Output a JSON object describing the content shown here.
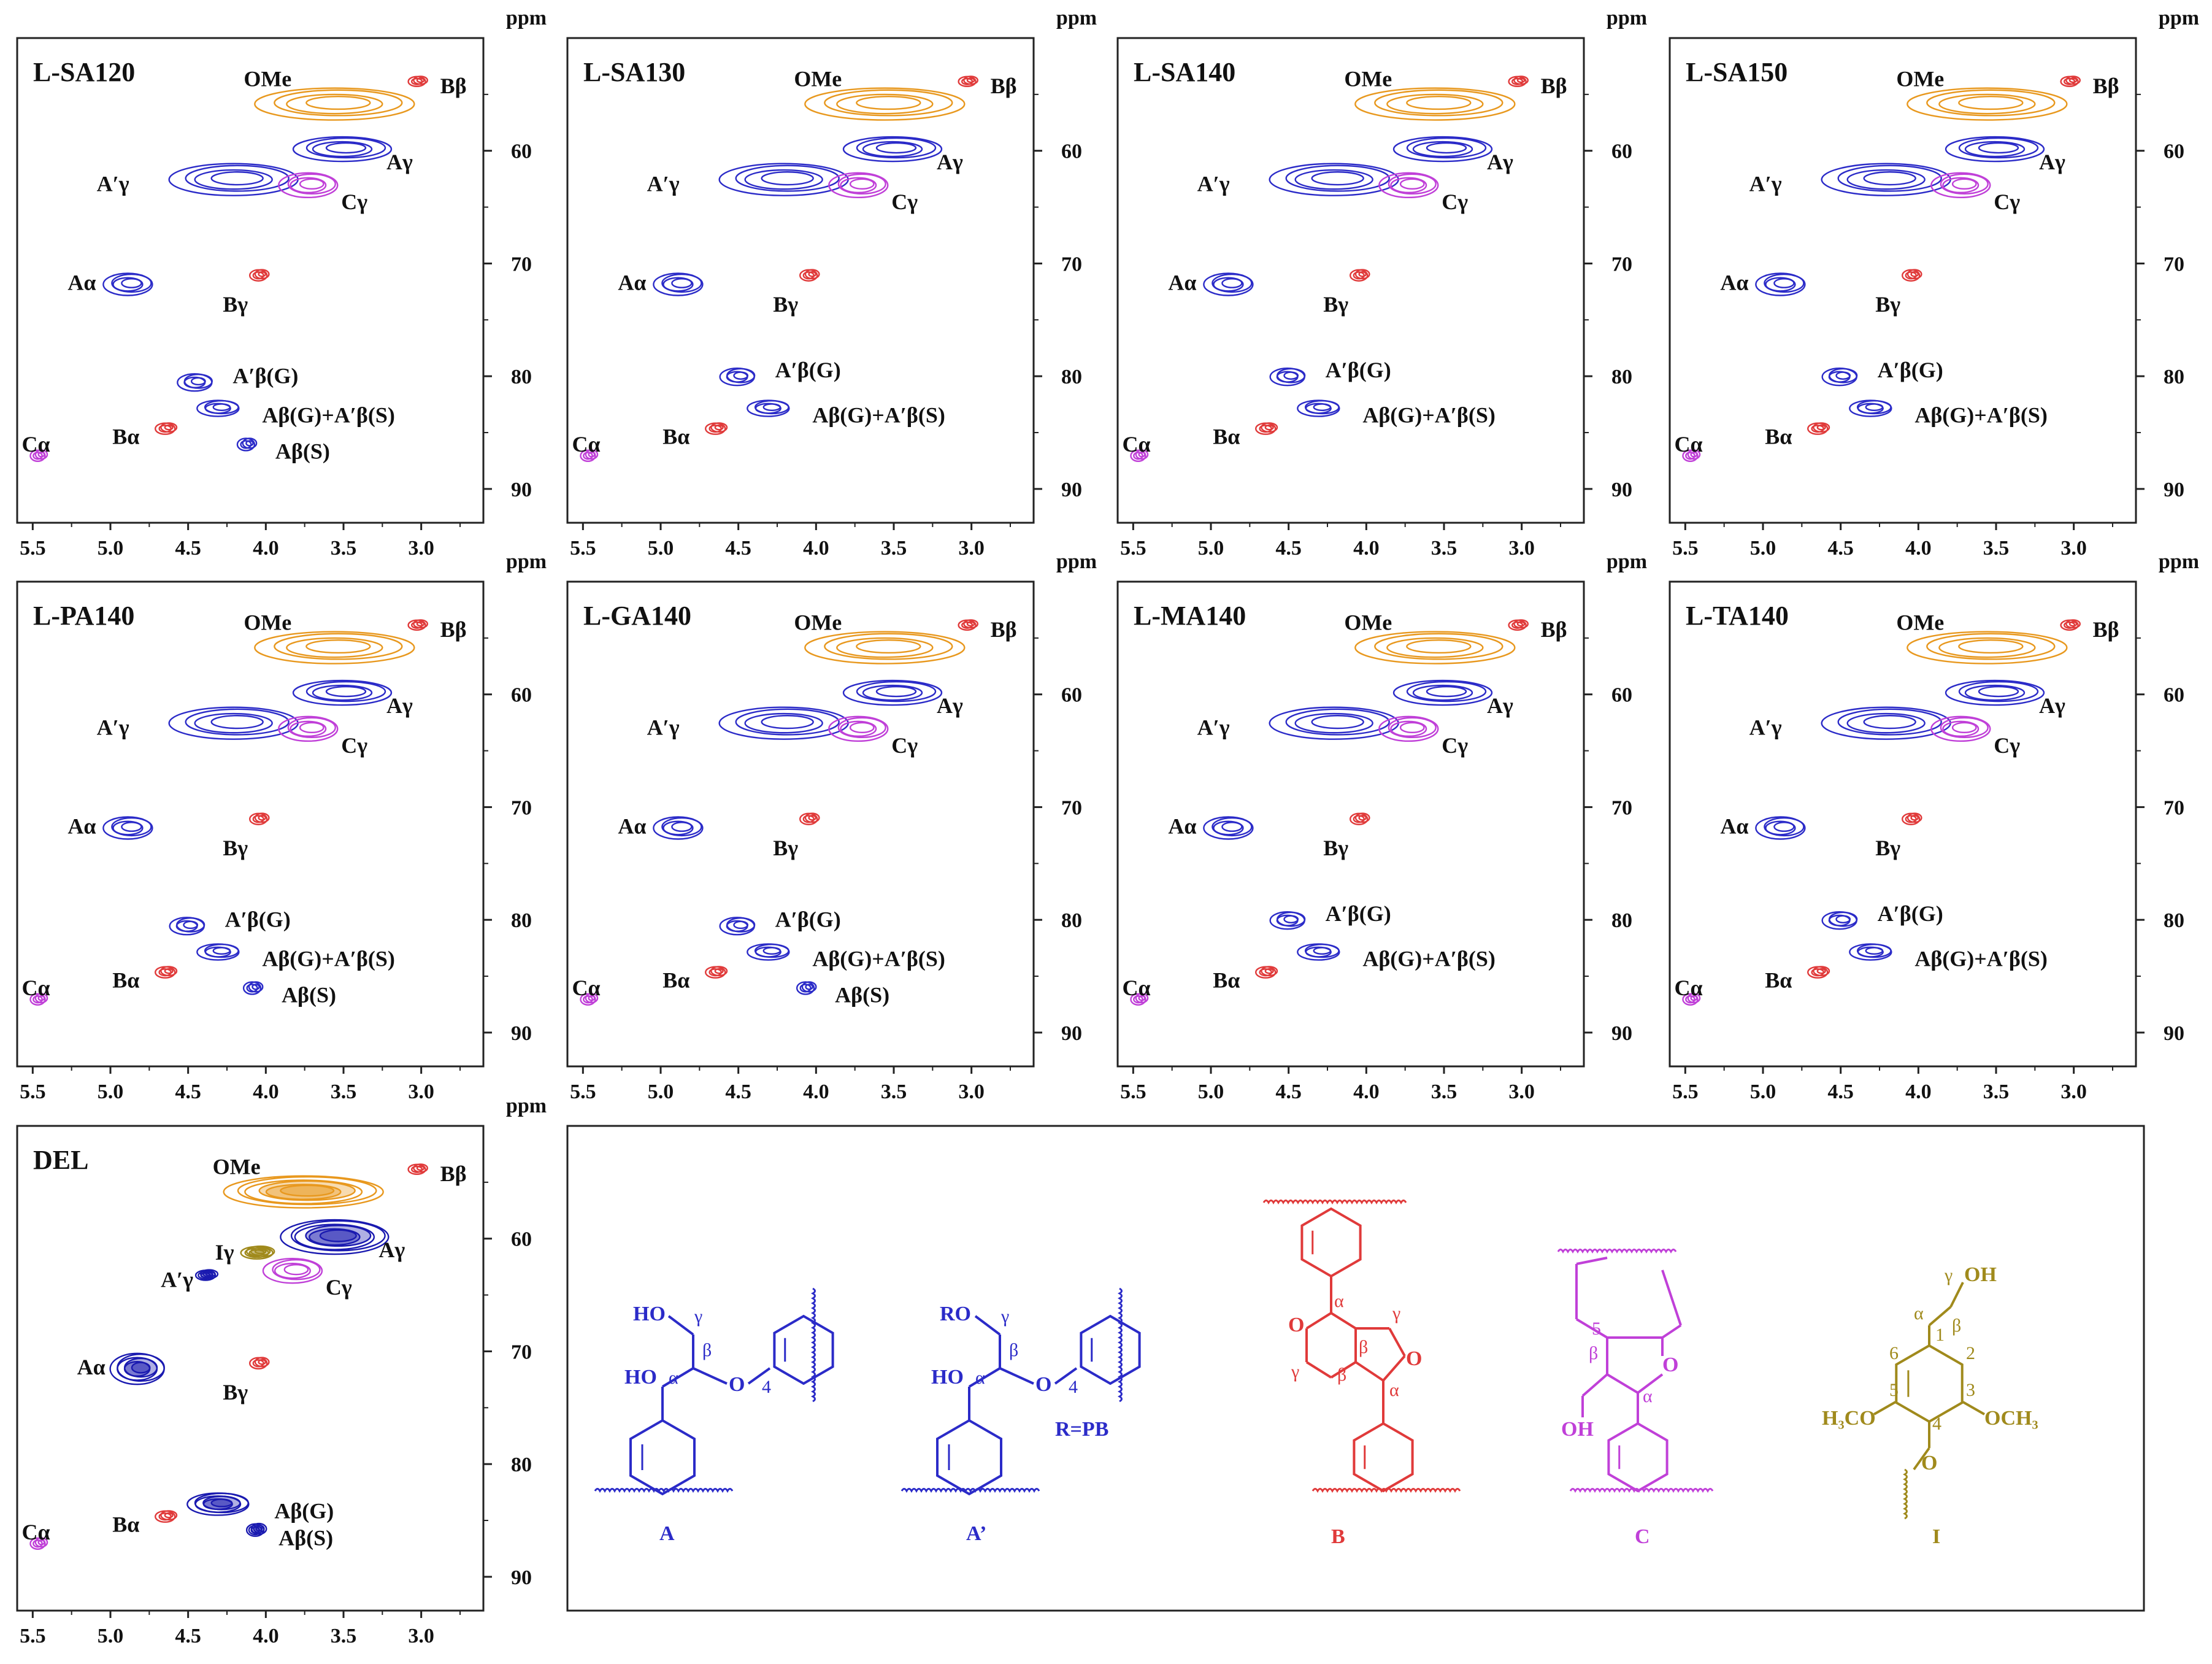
{
  "chart_data": {
    "type": "2D HSQC NMR contour plots",
    "axis": {
      "x_ticks": [
        "5.5",
        "5.0",
        "4.5",
        "4.0",
        "3.5",
        "3.0"
      ],
      "y_ticks": [
        "60",
        "70",
        "80",
        "90"
      ],
      "y_unit": "ppm",
      "xlim": [
        5.6,
        2.6
      ],
      "ylim": [
        50,
        93
      ]
    },
    "colors": {
      "OMe": "#e8981e",
      "A": "#2b2bc8",
      "A_dense": "#1a1ab0",
      "B": "#e03a3a",
      "C": "#c040d8",
      "I": "#a08a1c"
    },
    "panels": [
      {
        "label": "L-SA120",
        "peaks": [
          {
            "name": "OMe",
            "x": 3.55,
            "y": 55.8,
            "group": "OMe"
          },
          {
            "name": "Bβ",
            "x": 3.02,
            "y": 53.8,
            "group": "B"
          },
          {
            "name": "Aγ",
            "x": 3.5,
            "y": 59.8,
            "group": "A"
          },
          {
            "name": "A′γ",
            "x": 4.2,
            "y": 62.5,
            "group": "A"
          },
          {
            "name": "Cγ",
            "x": 3.72,
            "y": 63.0,
            "group": "C"
          },
          {
            "name": "Aα",
            "x": 4.88,
            "y": 71.8,
            "group": "A"
          },
          {
            "name": "Bγ",
            "x": 4.04,
            "y": 71.0,
            "group": "B"
          },
          {
            "name": "A′β(G)",
            "x": 4.45,
            "y": 80.5,
            "group": "A"
          },
          {
            "name": "Aβ(G)+A′β(S)",
            "x": 4.3,
            "y": 82.8,
            "group": "A"
          },
          {
            "name": "Bα",
            "x": 4.64,
            "y": 84.6,
            "group": "B"
          },
          {
            "name": "Cα",
            "x": 5.46,
            "y": 87.0,
            "group": "C"
          },
          {
            "name": "Aβ(S)",
            "x": 4.12,
            "y": 86.0,
            "group": "A"
          }
        ]
      },
      {
        "label": "L-SA130",
        "peaks": [
          {
            "name": "OMe",
            "x": 3.55,
            "y": 55.8,
            "group": "OMe"
          },
          {
            "name": "Bβ",
            "x": 3.02,
            "y": 53.8,
            "group": "B"
          },
          {
            "name": "Aγ",
            "x": 3.5,
            "y": 59.8,
            "group": "A"
          },
          {
            "name": "A′γ",
            "x": 4.2,
            "y": 62.5,
            "group": "A"
          },
          {
            "name": "Cγ",
            "x": 3.72,
            "y": 63.0,
            "group": "C"
          },
          {
            "name": "Aα",
            "x": 4.88,
            "y": 71.8,
            "group": "A"
          },
          {
            "name": "Bγ",
            "x": 4.04,
            "y": 71.0,
            "group": "B"
          },
          {
            "name": "A′β(G)",
            "x": 4.5,
            "y": 80.0,
            "group": "A"
          },
          {
            "name": "Aβ(G)+A′β(S)",
            "x": 4.3,
            "y": 82.8,
            "group": "A"
          },
          {
            "name": "Bα",
            "x": 4.64,
            "y": 84.6,
            "group": "B"
          },
          {
            "name": "Cα",
            "x": 5.46,
            "y": 87.0,
            "group": "C"
          }
        ]
      },
      {
        "label": "L-SA140",
        "peaks": [
          {
            "name": "OMe",
            "x": 3.55,
            "y": 55.8,
            "group": "OMe"
          },
          {
            "name": "Bβ",
            "x": 3.02,
            "y": 53.8,
            "group": "B"
          },
          {
            "name": "Aγ",
            "x": 3.5,
            "y": 59.8,
            "group": "A"
          },
          {
            "name": "A′γ",
            "x": 4.2,
            "y": 62.5,
            "group": "A"
          },
          {
            "name": "Cγ",
            "x": 3.72,
            "y": 63.0,
            "group": "C"
          },
          {
            "name": "Aα",
            "x": 4.88,
            "y": 71.8,
            "group": "A"
          },
          {
            "name": "Bγ",
            "x": 4.04,
            "y": 71.0,
            "group": "B"
          },
          {
            "name": "A′β(G)",
            "x": 4.5,
            "y": 80.0,
            "group": "A"
          },
          {
            "name": "Aβ(G)+A′β(S)",
            "x": 4.3,
            "y": 82.8,
            "group": "A"
          },
          {
            "name": "Bα",
            "x": 4.64,
            "y": 84.6,
            "group": "B"
          },
          {
            "name": "Cα",
            "x": 5.46,
            "y": 87.0,
            "group": "C"
          }
        ]
      },
      {
        "label": "L-SA150",
        "peaks": [
          {
            "name": "OMe",
            "x": 3.55,
            "y": 55.8,
            "group": "OMe"
          },
          {
            "name": "Bβ",
            "x": 3.02,
            "y": 53.8,
            "group": "B"
          },
          {
            "name": "Aγ",
            "x": 3.5,
            "y": 59.8,
            "group": "A"
          },
          {
            "name": "A′γ",
            "x": 4.2,
            "y": 62.5,
            "group": "A"
          },
          {
            "name": "Cγ",
            "x": 3.72,
            "y": 63.0,
            "group": "C"
          },
          {
            "name": "Aα",
            "x": 4.88,
            "y": 71.8,
            "group": "A"
          },
          {
            "name": "Bγ",
            "x": 4.04,
            "y": 71.0,
            "group": "B"
          },
          {
            "name": "A′β(G)",
            "x": 4.5,
            "y": 80.0,
            "group": "A"
          },
          {
            "name": "Aβ(G)+A′β(S)",
            "x": 4.3,
            "y": 82.8,
            "group": "A"
          },
          {
            "name": "Bα",
            "x": 4.64,
            "y": 84.6,
            "group": "B"
          },
          {
            "name": "Cα",
            "x": 5.46,
            "y": 87.0,
            "group": "C"
          }
        ]
      },
      {
        "label": "L-PA140",
        "peaks": [
          {
            "name": "OMe",
            "x": 3.55,
            "y": 55.8,
            "group": "OMe"
          },
          {
            "name": "Bβ",
            "x": 3.02,
            "y": 53.8,
            "group": "B"
          },
          {
            "name": "Aγ",
            "x": 3.5,
            "y": 59.8,
            "group": "A"
          },
          {
            "name": "A′γ",
            "x": 4.2,
            "y": 62.5,
            "group": "A"
          },
          {
            "name": "Cγ",
            "x": 3.72,
            "y": 63.0,
            "group": "C"
          },
          {
            "name": "Aα",
            "x": 4.88,
            "y": 71.8,
            "group": "A"
          },
          {
            "name": "Bγ",
            "x": 4.04,
            "y": 71.0,
            "group": "B"
          },
          {
            "name": "A′β(G)",
            "x": 4.5,
            "y": 80.5,
            "group": "A"
          },
          {
            "name": "Aβ(G)+A′β(S)",
            "x": 4.3,
            "y": 82.8,
            "group": "A"
          },
          {
            "name": "Bα",
            "x": 4.64,
            "y": 84.6,
            "group": "B"
          },
          {
            "name": "Cα",
            "x": 5.46,
            "y": 87.0,
            "group": "C"
          },
          {
            "name": "Aβ(S)",
            "x": 4.08,
            "y": 86.0,
            "group": "A"
          }
        ]
      },
      {
        "label": "L-GA140",
        "peaks": [
          {
            "name": "OMe",
            "x": 3.55,
            "y": 55.8,
            "group": "OMe"
          },
          {
            "name": "Bβ",
            "x": 3.02,
            "y": 53.8,
            "group": "B"
          },
          {
            "name": "Aγ",
            "x": 3.5,
            "y": 59.8,
            "group": "A"
          },
          {
            "name": "A′γ",
            "x": 4.2,
            "y": 62.5,
            "group": "A"
          },
          {
            "name": "Cγ",
            "x": 3.72,
            "y": 63.0,
            "group": "C"
          },
          {
            "name": "Aα",
            "x": 4.88,
            "y": 71.8,
            "group": "A"
          },
          {
            "name": "Bγ",
            "x": 4.04,
            "y": 71.0,
            "group": "B"
          },
          {
            "name": "A′β(G)",
            "x": 4.5,
            "y": 80.5,
            "group": "A"
          },
          {
            "name": "Aβ(G)+A′β(S)",
            "x": 4.3,
            "y": 82.8,
            "group": "A"
          },
          {
            "name": "Bα",
            "x": 4.64,
            "y": 84.6,
            "group": "B"
          },
          {
            "name": "Cα",
            "x": 5.46,
            "y": 87.0,
            "group": "C"
          },
          {
            "name": "Aβ(S)",
            "x": 4.06,
            "y": 86.0,
            "group": "A"
          }
        ]
      },
      {
        "label": "L-MA140",
        "peaks": [
          {
            "name": "OMe",
            "x": 3.55,
            "y": 55.8,
            "group": "OMe"
          },
          {
            "name": "Bβ",
            "x": 3.02,
            "y": 53.8,
            "group": "B"
          },
          {
            "name": "Aγ",
            "x": 3.5,
            "y": 59.8,
            "group": "A"
          },
          {
            "name": "A′γ",
            "x": 4.2,
            "y": 62.5,
            "group": "A"
          },
          {
            "name": "Cγ",
            "x": 3.72,
            "y": 63.0,
            "group": "C"
          },
          {
            "name": "Aα",
            "x": 4.88,
            "y": 71.8,
            "group": "A"
          },
          {
            "name": "Bγ",
            "x": 4.04,
            "y": 71.0,
            "group": "B"
          },
          {
            "name": "A′β(G)",
            "x": 4.5,
            "y": 80.0,
            "group": "A"
          },
          {
            "name": "Aβ(G)+A′β(S)",
            "x": 4.3,
            "y": 82.8,
            "group": "A"
          },
          {
            "name": "Bα",
            "x": 4.64,
            "y": 84.6,
            "group": "B"
          },
          {
            "name": "Cα",
            "x": 5.46,
            "y": 87.0,
            "group": "C"
          }
        ]
      },
      {
        "label": "L-TA140",
        "peaks": [
          {
            "name": "OMe",
            "x": 3.55,
            "y": 55.8,
            "group": "OMe"
          },
          {
            "name": "Bβ",
            "x": 3.02,
            "y": 53.8,
            "group": "B"
          },
          {
            "name": "Aγ",
            "x": 3.5,
            "y": 59.8,
            "group": "A"
          },
          {
            "name": "A′γ",
            "x": 4.2,
            "y": 62.5,
            "group": "A"
          },
          {
            "name": "Cγ",
            "x": 3.72,
            "y": 63.0,
            "group": "C"
          },
          {
            "name": "Aα",
            "x": 4.88,
            "y": 71.8,
            "group": "A"
          },
          {
            "name": "Bγ",
            "x": 4.04,
            "y": 71.0,
            "group": "B"
          },
          {
            "name": "A′β(G)",
            "x": 4.5,
            "y": 80.0,
            "group": "A"
          },
          {
            "name": "Aβ(G)+A′β(S)",
            "x": 4.3,
            "y": 82.8,
            "group": "A"
          },
          {
            "name": "Bα",
            "x": 4.64,
            "y": 84.6,
            "group": "B"
          },
          {
            "name": "Cα",
            "x": 5.46,
            "y": 87.0,
            "group": "C"
          }
        ]
      },
      {
        "label": "DEL",
        "peaks": [
          {
            "name": "OMe",
            "x": 3.75,
            "y": 55.8,
            "group": "OMe"
          },
          {
            "name": "Bβ",
            "x": 3.02,
            "y": 53.8,
            "group": "B"
          },
          {
            "name": "Aγ",
            "x": 3.55,
            "y": 59.8,
            "group": "A"
          },
          {
            "name": "Iγ",
            "x": 4.05,
            "y": 61.2,
            "group": "I"
          },
          {
            "name": "A′γ",
            "x": 4.38,
            "y": 63.2,
            "group": "A"
          },
          {
            "name": "Cγ",
            "x": 3.82,
            "y": 62.8,
            "group": "C"
          },
          {
            "name": "Aα",
            "x": 4.82,
            "y": 71.5,
            "group": "A"
          },
          {
            "name": "Bγ",
            "x": 4.04,
            "y": 71.0,
            "group": "B"
          },
          {
            "name": "Aβ(G)",
            "x": 4.3,
            "y": 83.5,
            "group": "A"
          },
          {
            "name": "Bα",
            "x": 4.64,
            "y": 84.6,
            "group": "B"
          },
          {
            "name": "Cα",
            "x": 5.46,
            "y": 87.0,
            "group": "C"
          },
          {
            "name": "Aβ(S)",
            "x": 4.06,
            "y": 85.8,
            "group": "A"
          }
        ]
      }
    ],
    "structures": [
      {
        "id": "A",
        "label": "A",
        "color": "#2b2bc8",
        "atoms": [
          "HO",
          "γ",
          "β",
          "HO",
          "α",
          "O",
          "4"
        ]
      },
      {
        "id": "A2",
        "label": "A’",
        "color": "#2b2bc8",
        "atoms": [
          "RO",
          "γ",
          "β",
          "HO",
          "α",
          "O",
          "4",
          "R=PB"
        ]
      },
      {
        "id": "B",
        "label": "B",
        "color": "#e03a3a",
        "atoms": [
          "α",
          "O",
          "γ",
          "β",
          "β",
          "γ",
          "O",
          "α"
        ]
      },
      {
        "id": "C",
        "label": "C",
        "color": "#c040d8",
        "atoms": [
          "5",
          "β",
          "O",
          "α",
          "OH"
        ]
      },
      {
        "id": "I",
        "label": "I",
        "color": "#a08a1c",
        "atoms": [
          "γ",
          "OH",
          "α",
          "β",
          "1",
          "6",
          "2",
          "5",
          "3",
          "4",
          "H₃CO",
          "OCH₃",
          "O"
        ]
      }
    ]
  }
}
